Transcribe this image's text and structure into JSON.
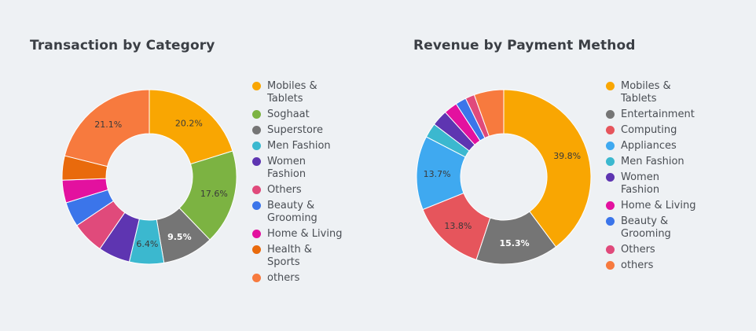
{
  "chart_data": [
    {
      "type": "pie",
      "title": "Transaction by Category",
      "legend_position": "right",
      "categories": [
        "Mobiles & Tablets",
        "Soghaat",
        "Superstore",
        "Men Fashion",
        "Women Fashion",
        "Others",
        "Beauty & Grooming",
        "Home & Living",
        "Health & Sports",
        "others"
      ],
      "values": [
        20.2,
        17.6,
        9.5,
        6.4,
        5.9,
        6.0,
        4.6,
        4.2,
        4.5,
        21.1
      ],
      "data_labels": [
        "20.2%",
        "17.6%",
        "9.5%",
        "6.4%",
        "",
        "",
        "",
        "",
        "",
        "21.1%"
      ],
      "colors": [
        "#f9a602",
        "#7cb342",
        "#757575",
        "#3bb8cf",
        "#5e35b1",
        "#e04a7b",
        "#3b75ea",
        "#e3119f",
        "#e96a0c",
        "#f77a3e"
      ]
    },
    {
      "type": "pie",
      "title": "Revenue by Payment Method",
      "legend_position": "right",
      "categories": [
        "Mobiles & Tablets",
        "Entertainment",
        "Computing",
        "Appliances",
        "Men Fashion",
        "Women Fashion",
        "Home & Living",
        "Beauty & Grooming",
        "Others",
        "others"
      ],
      "values": [
        39.8,
        15.3,
        13.8,
        13.7,
        2.7,
        3.0,
        2.5,
        2.0,
        1.7,
        5.5
      ],
      "data_labels": [
        "39.8%",
        "15.3%",
        "13.8%",
        "13.7%",
        "",
        "",
        "",
        "",
        "",
        ""
      ],
      "colors": [
        "#f9a602",
        "#757575",
        "#e6555c",
        "#3fa9f0",
        "#3bb8cf",
        "#5e35b1",
        "#e3119f",
        "#3b75ea",
        "#e04a7b",
        "#f77a3e"
      ]
    }
  ]
}
